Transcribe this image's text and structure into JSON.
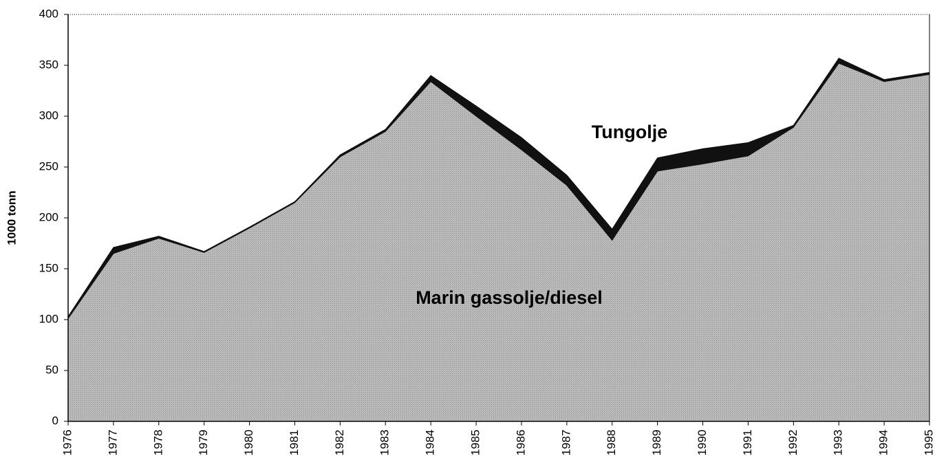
{
  "chart_data": {
    "type": "stacked-area",
    "y_label": "1000 tonn",
    "categories": [
      "1976",
      "1977",
      "1978",
      "1979",
      "1980",
      "1981",
      "1982",
      "1983",
      "1984",
      "1985",
      "1986",
      "1987",
      "1988",
      "1989",
      "1990",
      "1991",
      "1992",
      "1993",
      "1994",
      "1995"
    ],
    "series": [
      {
        "name": "Marin gassolje/diesel",
        "color": "#bdbdbd",
        "values": [
          101,
          165,
          180,
          166,
          190,
          215,
          260,
          285,
          334,
          300,
          267,
          232,
          178,
          246,
          253,
          261,
          289,
          352,
          334,
          341
        ]
      },
      {
        "name": "Tungolje",
        "color": "#111111",
        "values": [
          2,
          6,
          2,
          1,
          1,
          1,
          2,
          2,
          6,
          10,
          12,
          10,
          11,
          13,
          15,
          13,
          2,
          5,
          2,
          2
        ]
      }
    ],
    "ylim": [
      0,
      400
    ],
    "yticks": [
      0,
      50,
      100,
      150,
      200,
      250,
      300,
      350,
      400
    ]
  }
}
